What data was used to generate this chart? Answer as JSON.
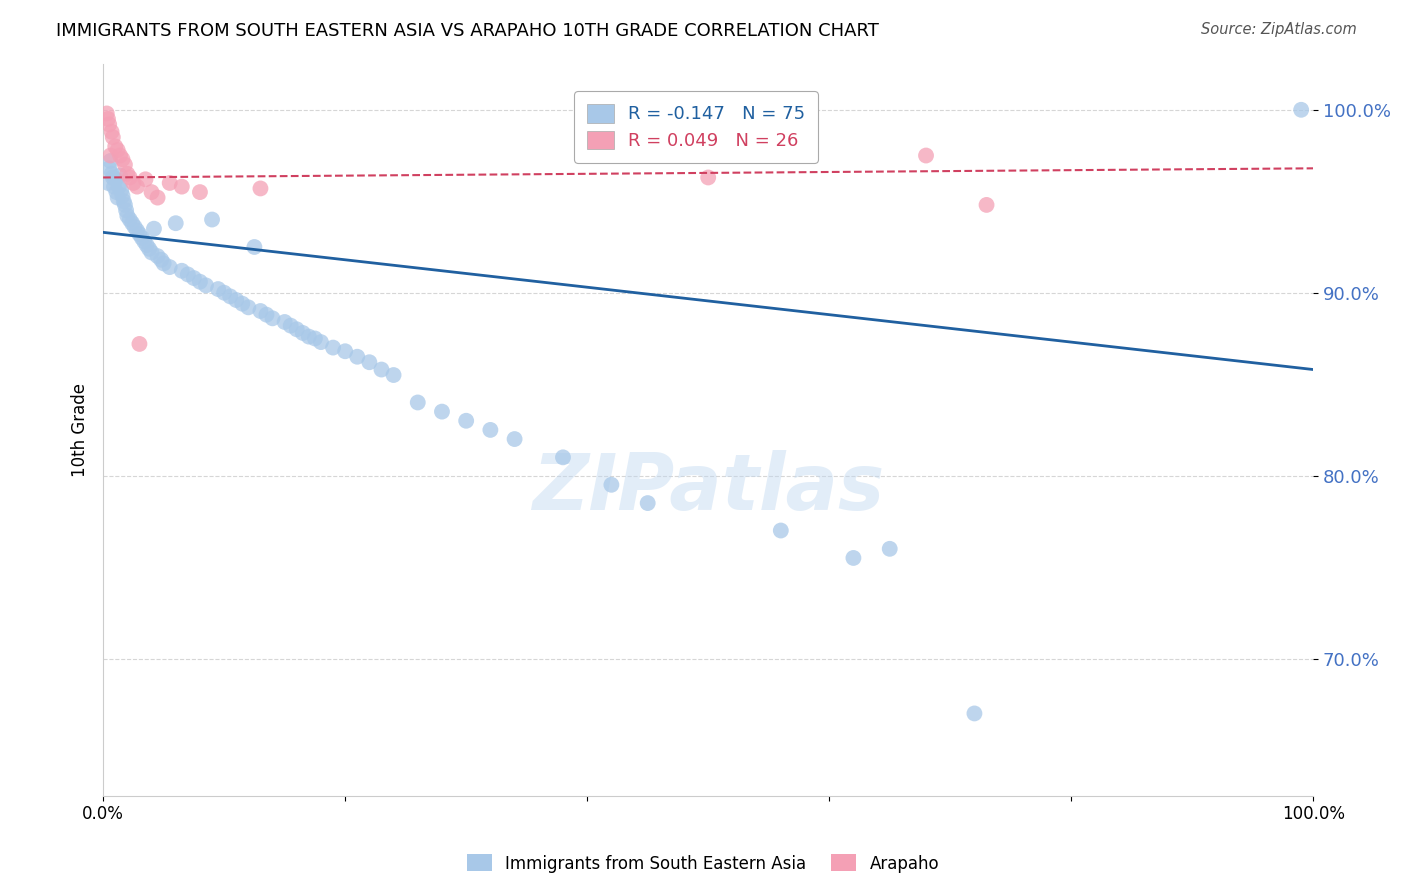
{
  "title": "IMMIGRANTS FROM SOUTH EASTERN ASIA VS ARAPAHO 10TH GRADE CORRELATION CHART",
  "source": "Source: ZipAtlas.com",
  "ylabel": "10th Grade",
  "xlim": [
    0.0,
    1.0
  ],
  "ylim": [
    0.625,
    1.025
  ],
  "yticks": [
    0.7,
    0.8,
    0.9,
    1.0
  ],
  "ytick_labels": [
    "70.0%",
    "80.0%",
    "90.0%",
    "100.0%"
  ],
  "xticks": [
    0.0,
    0.2,
    0.4,
    0.6,
    0.8,
    1.0
  ],
  "xtick_labels": [
    "0.0%",
    "",
    "",
    "",
    "",
    "100.0%"
  ],
  "blue_color": "#a8c8e8",
  "pink_color": "#f4a0b5",
  "blue_line_color": "#2060a0",
  "pink_line_color": "#d04060",
  "legend_R_blue": "-0.147",
  "legend_N_blue": "75",
  "legend_R_pink": "0.049",
  "legend_N_pink": "26",
  "legend_label_blue": "Immigrants from South Eastern Asia",
  "legend_label_pink": "Arapaho",
  "watermark": "ZIPatlas",
  "blue_scatter_x": [
    0.004,
    0.005,
    0.006,
    0.007,
    0.008,
    0.009,
    0.01,
    0.011,
    0.012,
    0.013,
    0.014,
    0.015,
    0.016,
    0.017,
    0.018,
    0.019,
    0.02,
    0.022,
    0.024,
    0.026,
    0.028,
    0.03,
    0.032,
    0.034,
    0.036,
    0.038,
    0.04,
    0.042,
    0.045,
    0.048,
    0.05,
    0.055,
    0.06,
    0.065,
    0.07,
    0.075,
    0.08,
    0.085,
    0.09,
    0.095,
    0.1,
    0.105,
    0.11,
    0.115,
    0.12,
    0.125,
    0.13,
    0.135,
    0.14,
    0.15,
    0.155,
    0.16,
    0.165,
    0.17,
    0.175,
    0.18,
    0.19,
    0.2,
    0.21,
    0.22,
    0.23,
    0.24,
    0.26,
    0.28,
    0.3,
    0.32,
    0.34,
    0.38,
    0.42,
    0.45,
    0.56,
    0.62,
    0.65,
    0.72,
    0.99
  ],
  "blue_scatter_y": [
    0.96,
    0.968,
    0.972,
    0.965,
    0.963,
    0.958,
    0.962,
    0.955,
    0.952,
    0.958,
    0.964,
    0.956,
    0.953,
    0.95,
    0.948,
    0.945,
    0.942,
    0.94,
    0.938,
    0.936,
    0.934,
    0.932,
    0.93,
    0.928,
    0.926,
    0.924,
    0.922,
    0.935,
    0.92,
    0.918,
    0.916,
    0.914,
    0.938,
    0.912,
    0.91,
    0.908,
    0.906,
    0.904,
    0.94,
    0.902,
    0.9,
    0.898,
    0.896,
    0.894,
    0.892,
    0.925,
    0.89,
    0.888,
    0.886,
    0.884,
    0.882,
    0.88,
    0.878,
    0.876,
    0.875,
    0.873,
    0.87,
    0.868,
    0.865,
    0.862,
    0.858,
    0.855,
    0.84,
    0.835,
    0.83,
    0.825,
    0.82,
    0.81,
    0.795,
    0.785,
    0.77,
    0.755,
    0.76,
    0.67,
    1.0
  ],
  "pink_scatter_x": [
    0.003,
    0.004,
    0.005,
    0.006,
    0.007,
    0.008,
    0.01,
    0.012,
    0.014,
    0.016,
    0.018,
    0.02,
    0.022,
    0.025,
    0.028,
    0.03,
    0.035,
    0.04,
    0.045,
    0.055,
    0.065,
    0.08,
    0.13,
    0.5,
    0.68,
    0.73
  ],
  "pink_scatter_y": [
    0.998,
    0.995,
    0.992,
    0.975,
    0.988,
    0.985,
    0.98,
    0.978,
    0.975,
    0.973,
    0.97,
    0.965,
    0.963,
    0.96,
    0.958,
    0.872,
    0.962,
    0.955,
    0.952,
    0.96,
    0.958,
    0.955,
    0.957,
    0.963,
    0.975,
    0.948
  ],
  "blue_trend_x": [
    0.0,
    1.0
  ],
  "blue_trend_y": [
    0.933,
    0.858
  ],
  "pink_trend_x": [
    0.0,
    1.0
  ],
  "pink_trend_y": [
    0.963,
    0.968
  ]
}
